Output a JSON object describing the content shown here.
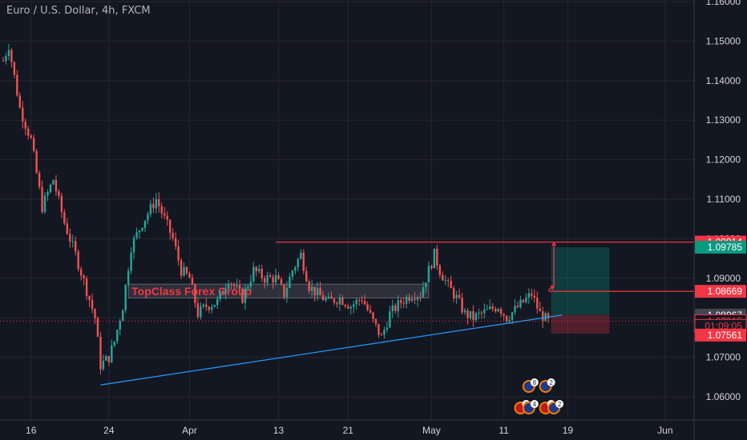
{
  "chart_data": {
    "type": "candlestick",
    "title": "Euro / U.S. Dollar, 4h, FXCM",
    "instrument": "EURUSD",
    "timeframe": "4h",
    "source": "FXCM",
    "ylim": [
      1.054,
      1.161
    ],
    "y_ticks": [
      1.06,
      1.07,
      1.08,
      1.09,
      1.1,
      1.11,
      1.12,
      1.13,
      1.14,
      1.15,
      1.16
    ],
    "y_tick_labels": [
      "1.06000",
      "1.07000",
      "1.08000",
      "1.09000",
      "1.10000",
      "1.11000",
      "1.12000",
      "1.13000",
      "1.14000",
      "1.15000",
      "1.16000"
    ],
    "x_ticks": [
      {
        "label": "16",
        "bar": 10
      },
      {
        "label": "24",
        "bar": 38
      },
      {
        "label": "Apr",
        "bar": 67
      },
      {
        "label": "13",
        "bar": 99
      },
      {
        "label": "21",
        "bar": 124
      },
      {
        "label": "May",
        "bar": 154
      },
      {
        "label": "11",
        "bar": 180
      },
      {
        "label": "19",
        "bar": 203
      },
      {
        "label": "Jun",
        "bar": 238
      }
    ],
    "bar_count": 197,
    "price_path": [
      [
        0,
        1.145
      ],
      [
        2,
        1.149
      ],
      [
        6,
        1.133
      ],
      [
        10,
        1.125
      ],
      [
        14,
        1.108
      ],
      [
        18,
        1.115
      ],
      [
        22,
        1.104
      ],
      [
        26,
        1.096
      ],
      [
        30,
        1.087
      ],
      [
        33,
        1.08
      ],
      [
        35,
        1.068
      ],
      [
        38,
        1.07
      ],
      [
        40,
        1.074
      ],
      [
        43,
        1.083
      ],
      [
        46,
        1.098
      ],
      [
        50,
        1.104
      ],
      [
        55,
        1.11
      ],
      [
        58,
        1.105
      ],
      [
        61,
        1.1
      ],
      [
        64,
        1.092
      ],
      [
        67,
        1.09
      ],
      [
        70,
        1.081
      ],
      [
        73,
        1.083
      ],
      [
        77,
        1.084
      ],
      [
        81,
        1.09
      ],
      [
        86,
        1.085
      ],
      [
        90,
        1.092
      ],
      [
        94,
        1.09
      ],
      [
        98,
        1.09
      ],
      [
        101,
        1.086
      ],
      [
        104,
        1.092
      ],
      [
        107,
        1.096
      ],
      [
        110,
        1.088
      ],
      [
        113,
        1.086
      ],
      [
        117,
        1.084
      ],
      [
        121,
        1.085
      ],
      [
        125,
        1.083
      ],
      [
        129,
        1.085
      ],
      [
        133,
        1.079
      ],
      [
        136,
        1.075
      ],
      [
        139,
        1.081
      ],
      [
        143,
        1.084
      ],
      [
        147,
        1.086
      ],
      [
        150,
        1.086
      ],
      [
        153,
        1.092
      ],
      [
        155,
        1.096
      ],
      [
        157,
        1.092
      ],
      [
        160,
        1.088
      ],
      [
        163,
        1.085
      ],
      [
        166,
        1.081
      ],
      [
        169,
        1.08
      ],
      [
        172,
        1.081
      ],
      [
        175,
        1.082
      ],
      [
        178,
        1.083
      ],
      [
        181,
        1.08
      ],
      [
        184,
        1.082
      ],
      [
        187,
        1.084
      ],
      [
        190,
        1.086
      ],
      [
        193,
        1.081
      ],
      [
        196,
        1.079
      ]
    ],
    "drawings": {
      "trendline": {
        "from": {
          "bar": 35,
          "price": 1.063
        },
        "to": {
          "bar": 201,
          "price": 1.0807
        },
        "color": "#2196f3"
      },
      "resistance": {
        "from_bar": 98,
        "price": 1.09914,
        "color": "#f23645"
      },
      "entry_level": {
        "from_bar": 196,
        "price": 1.08669,
        "color": "#f23645"
      },
      "zone": {
        "from_bar": 45,
        "to_bar": 153,
        "price_low": 1.085,
        "price_high": 1.0885,
        "label": "TopClass Forex Group"
      },
      "long_position": {
        "from_bar": 197,
        "to_bar": 218,
        "entry": 1.0807,
        "target": 1.09785,
        "stop": 1.076
      },
      "projection_arrows": [
        {
          "from": {
            "bar": 196,
            "price": 1.087
          },
          "to": {
            "bar": 198,
            "price": 1.088
          }
        },
        {
          "from": {
            "bar": 198,
            "price": 1.088
          },
          "to": {
            "bar": 198,
            "price": 1.099
          }
        }
      ],
      "current_price_line": {
        "price": 1.07915
      }
    },
    "price_labels": [
      {
        "value": "1.09914",
        "price": 1.09914,
        "bg": "#f23645",
        "fg": "#ffffff",
        "border": ""
      },
      {
        "value": "1.09785",
        "price": 1.09785,
        "bg": "#089981",
        "fg": "#ffffff",
        "border": ""
      },
      {
        "value": "1.08669",
        "price": 1.08669,
        "bg": "#f23645",
        "fg": "#ffffff",
        "border": ""
      },
      {
        "value": "1.08067",
        "price": 1.08067,
        "bg": "#434651",
        "fg": "#ffffff",
        "border": ""
      },
      {
        "value": "1.07915",
        "price": 1.07915,
        "bg": "#131722",
        "fg": "#f23645",
        "border": "#f23645"
      },
      {
        "value": "01:09:05",
        "price": 1.07795,
        "bg": "#131722",
        "fg": "#f23645",
        "border": "#f23645"
      },
      {
        "value": "1.07561",
        "price": 1.07561,
        "bg": "#f23645",
        "fg": "#ffffff",
        "border": ""
      }
    ],
    "event_markers": [
      {
        "flag": "eu",
        "count": "8",
        "bar": 189,
        "row": 0
      },
      {
        "flag": "eu",
        "count": "2",
        "bar": 195,
        "row": 0
      },
      {
        "flag": "us",
        "count": "6",
        "bar": 186,
        "row": 1
      },
      {
        "flag": "eu",
        "count": "4",
        "bar": 189,
        "row": 1
      },
      {
        "flag": "us",
        "count": "4",
        "bar": 195,
        "row": 1
      },
      {
        "flag": "eu",
        "count": "2",
        "bar": 198,
        "row": 1
      }
    ],
    "colors": {
      "background": "#131722",
      "grid": "#242733",
      "up": "#26a69a",
      "down": "#ef5350",
      "axis_text": "#d1d4dc",
      "zone": "#434651",
      "label_text": "#f23645"
    }
  }
}
